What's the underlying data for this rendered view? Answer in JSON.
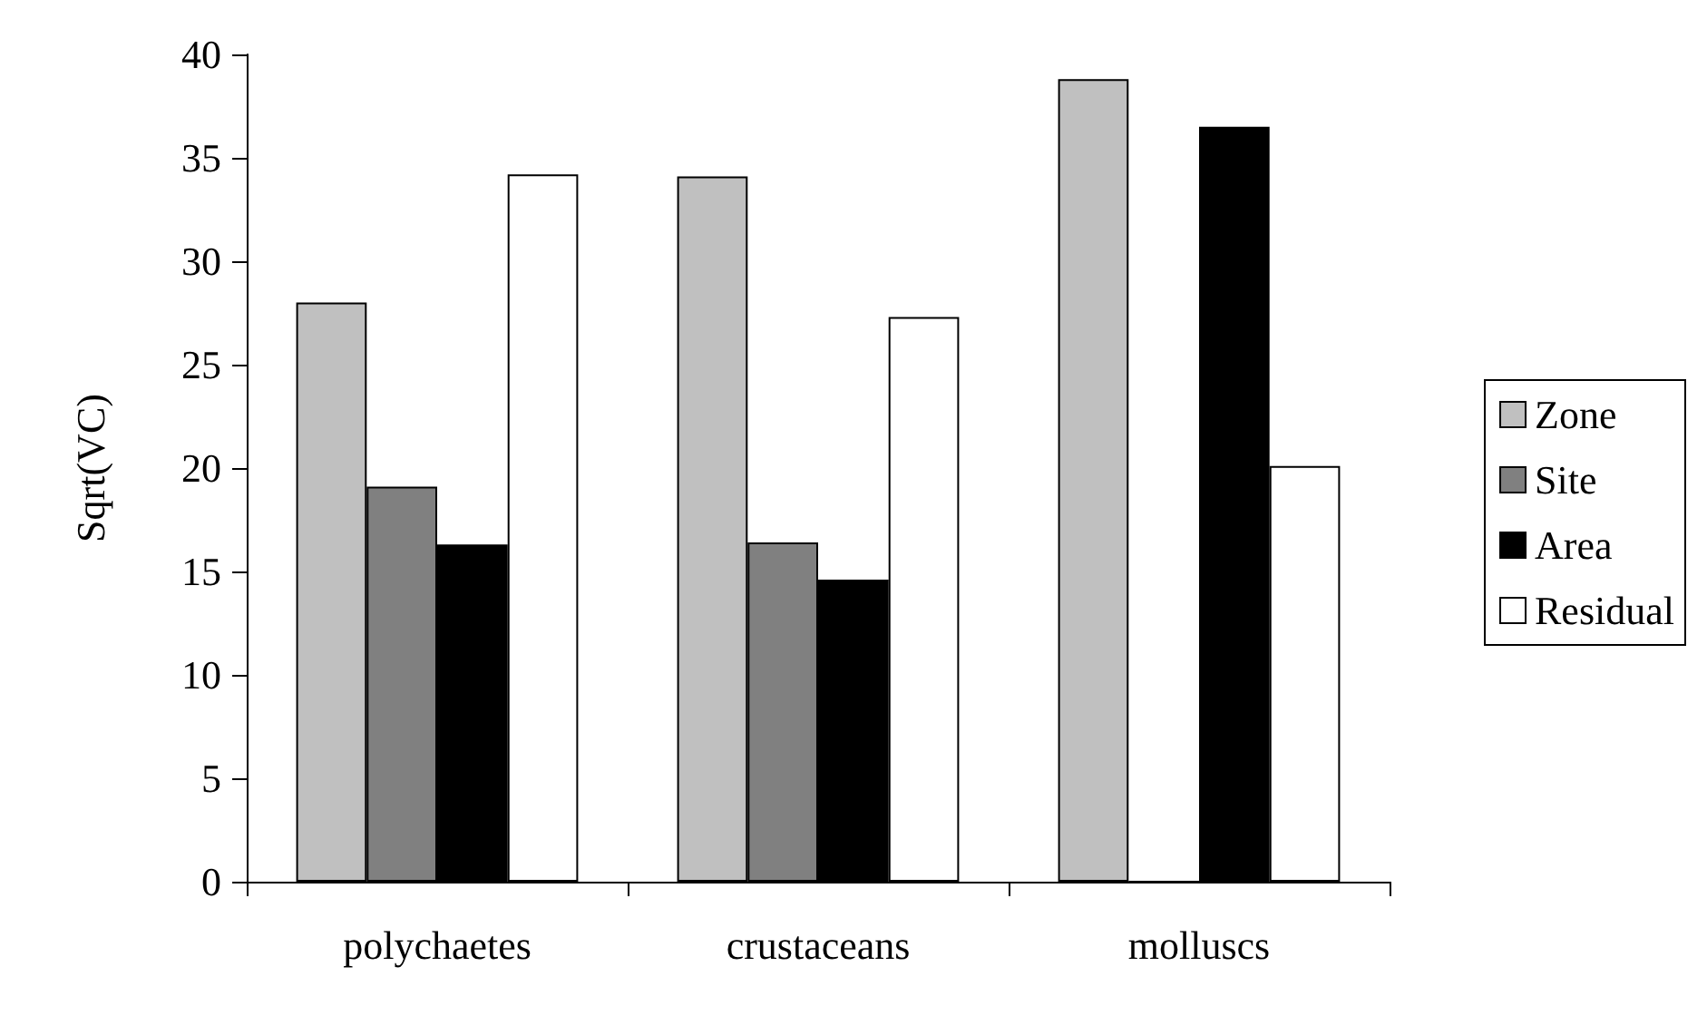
{
  "chart_data": {
    "type": "bar",
    "ylabel": "Sqrt(VC)",
    "categories": [
      "polychaetes",
      "crustaceans",
      "molluscs"
    ],
    "series": [
      {
        "name": "Zone",
        "color": "#c0c0c0",
        "values": [
          28,
          34.1,
          38.8
        ]
      },
      {
        "name": "Site",
        "color": "#808080",
        "values": [
          19.1,
          16.4,
          0
        ]
      },
      {
        "name": "Area",
        "color": "#000000",
        "values": [
          16.3,
          14.6,
          36.5
        ]
      },
      {
        "name": "Residual",
        "color": "#ffffff",
        "values": [
          34.2,
          27.3,
          20.1
        ]
      }
    ],
    "ylim": [
      0,
      40
    ],
    "yticks": [
      0,
      5,
      10,
      15,
      20,
      25,
      30,
      35,
      40
    ],
    "grid": false,
    "legend": "right"
  }
}
